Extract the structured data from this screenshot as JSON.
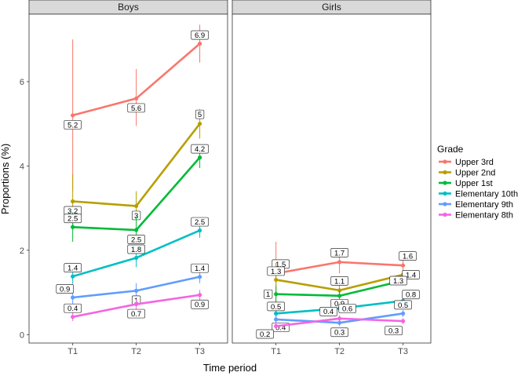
{
  "chart_data": {
    "type": "line",
    "xlabel": "Time period",
    "ylabel": "Proportions (%)",
    "x": [
      "T1",
      "T2",
      "T3"
    ],
    "ylim": [
      -0.2,
      7.6
    ],
    "y_ticks": [
      0,
      2,
      4,
      6
    ],
    "y_tick_labels": [
      "0",
      "2",
      "4",
      "6"
    ],
    "legend_title": "Grade",
    "legend_position": "right",
    "grid": false,
    "panels": [
      {
        "strip": "Boys",
        "series": [
          {
            "name": "Upper 3rd",
            "color": "#F8766D",
            "values": [
              5.2,
              5.6,
              6.9
            ],
            "labels": [
              "5.2",
              "5.6",
              "6.9"
            ],
            "ci_low": [
              3.4,
              4.95,
              6.45
            ],
            "ci_high": [
              7.0,
              6.3,
              7.35
            ]
          },
          {
            "name": "Upper 2nd",
            "color": "#B79F00",
            "values": [
              3.16,
              3.05,
              5.0
            ],
            "labels": [
              "3.2",
              "3",
              "5"
            ],
            "ci_low": [
              2.55,
              2.7,
              4.65
            ],
            "ci_high": [
              3.8,
              3.4,
              5.35
            ]
          },
          {
            "name": "Upper 1st",
            "color": "#00BA38",
            "values": [
              2.55,
              2.48,
              4.2
            ],
            "labels": [
              "2.5",
              "2.5",
              "4.2"
            ],
            "ci_low": [
              2.2,
              2.15,
              3.95
            ],
            "ci_high": [
              2.9,
              2.8,
              4.45
            ]
          },
          {
            "name": "Elementary 10th",
            "color": "#00BFC4",
            "values": [
              1.38,
              1.82,
              2.47
            ],
            "labels": [
              "1.4",
              "1.8",
              "2.5"
            ],
            "ci_low": [
              1.2,
              1.6,
              2.3
            ],
            "ci_high": [
              1.55,
              2.05,
              2.65
            ]
          },
          {
            "name": "Elementary 9th",
            "color": "#619CFF",
            "values": [
              0.88,
              1.04,
              1.37
            ],
            "labels": [
              "0.9",
              "1",
              "1.4"
            ],
            "ci_low": [
              0.72,
              0.85,
              1.22
            ],
            "ci_high": [
              1.04,
              1.22,
              1.52
            ]
          },
          {
            "name": "Elementary 8th",
            "color": "#F564E3",
            "values": [
              0.42,
              0.72,
              0.94
            ],
            "labels": [
              "0.4",
              "0.7",
              "0.9"
            ],
            "ci_low": [
              0.32,
              0.6,
              0.82
            ],
            "ci_high": [
              0.52,
              0.84,
              1.06
            ]
          }
        ]
      },
      {
        "strip": "Girls",
        "series": [
          {
            "name": "Upper 3rd",
            "color": "#F8766D",
            "values": [
              1.45,
              1.72,
              1.64
            ],
            "labels": [
              "1.5",
              "1.7",
              "1.6"
            ],
            "ci_low": [
              0.75,
              1.45,
              1.45
            ],
            "ci_high": [
              2.2,
              2.0,
              1.83
            ]
          },
          {
            "name": "Upper 2nd",
            "color": "#B79F00",
            "values": [
              1.3,
              1.05,
              1.42
            ],
            "labels": [
              "1.3",
              "1.1",
              "1.4"
            ],
            "ci_low": [
              0.95,
              0.92,
              1.3
            ],
            "ci_high": [
              1.7,
              1.18,
              1.54
            ]
          },
          {
            "name": "Upper 1st",
            "color": "#00BA38",
            "values": [
              0.96,
              0.92,
              1.28
            ],
            "labels": [
              "1",
              "0.9",
              "1.3"
            ],
            "ci_low": [
              0.78,
              0.8,
              1.17
            ],
            "ci_high": [
              1.15,
              1.05,
              1.39
            ]
          },
          {
            "name": "Elementary 10th",
            "color": "#00BFC4",
            "values": [
              0.5,
              0.62,
              0.8
            ],
            "labels": [
              "0.5",
              "0.6",
              "0.8"
            ],
            "ci_low": [
              0.4,
              0.52,
              0.7
            ],
            "ci_high": [
              0.6,
              0.72,
              0.9
            ]
          },
          {
            "name": "Elementary 9th",
            "color": "#619CFF",
            "values": [
              0.36,
              0.28,
              0.5
            ],
            "labels": [
              "0.4",
              "0.3",
              "0.5"
            ],
            "ci_low": [
              0.26,
              0.2,
              0.42
            ],
            "ci_high": [
              0.46,
              0.37,
              0.58
            ]
          },
          {
            "name": "Elementary 8th",
            "color": "#F564E3",
            "values": [
              0.2,
              0.38,
              0.32
            ],
            "labels": [
              "0.2",
              "0.4",
              "0.3"
            ],
            "ci_low": [
              0.12,
              0.3,
              0.25
            ],
            "ci_high": [
              0.28,
              0.46,
              0.39
            ]
          }
        ]
      }
    ]
  }
}
